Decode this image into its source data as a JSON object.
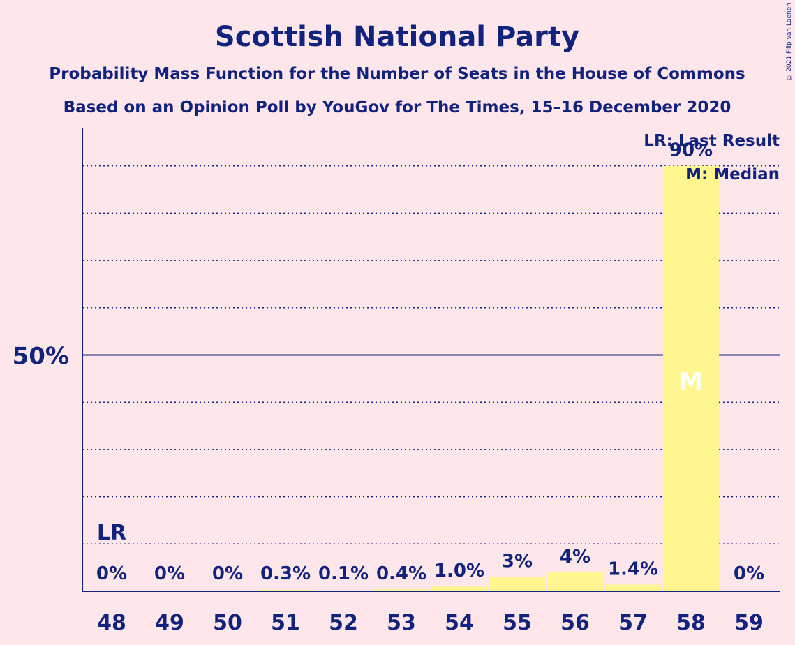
{
  "copyright": "© 2021 Filip van Laenen",
  "chart_data": {
    "type": "bar",
    "title": "Scottish National Party",
    "subtitle": "Probability Mass Function for the Number of Seats in the House of Commons",
    "subtitle2": "Based on an Opinion Poll by YouGov for The Times, 15–16 December 2020",
    "xlabel": "",
    "ylabel": "",
    "ylim": [
      0,
      100
    ],
    "y_tick_label": "50%",
    "y_tick_value": 50,
    "gridlines": [
      10,
      20,
      30,
      40,
      60,
      70,
      80,
      90
    ],
    "categories": [
      "48",
      "49",
      "50",
      "51",
      "52",
      "53",
      "54",
      "55",
      "56",
      "57",
      "58",
      "59"
    ],
    "values": [
      0,
      0,
      0,
      0.3,
      0.1,
      0.4,
      1.0,
      3,
      4,
      1.4,
      90,
      0
    ],
    "value_labels": [
      "0%",
      "0%",
      "0%",
      "0.3%",
      "0.1%",
      "0.4%",
      "1.0%",
      "3%",
      "4%",
      "1.4%",
      "90%",
      "0%"
    ],
    "last_result_category": "48",
    "last_result_marker": "LR",
    "median_category": "58",
    "median_marker": "M",
    "legend": [
      "LR: Last Result",
      "M: Median"
    ],
    "legend_position": "top-right",
    "bar_color": "#fff68f",
    "text_color": "#12237d",
    "background_color": "#ffe6ea"
  }
}
